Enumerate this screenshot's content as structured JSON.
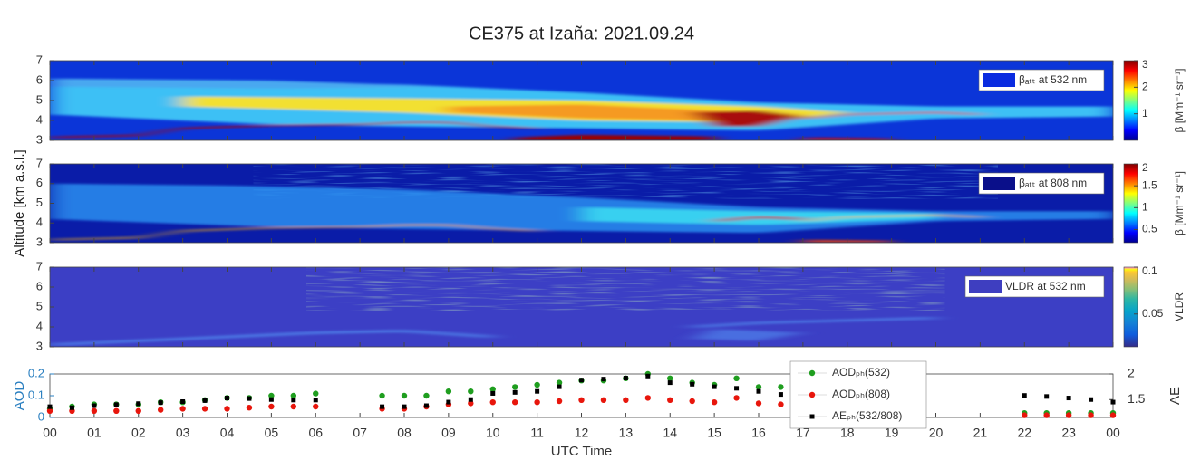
{
  "chart_data": [
    {
      "type": "heatmap",
      "title": "CE375 at Izaña: 2021.09.24",
      "legend": "βₐₜₜ at 532 nm",
      "legend_color": "#0a2be0",
      "ylim": [
        3,
        7
      ],
      "yticks": [
        3,
        4,
        5,
        6,
        7
      ],
      "colorbar": {
        "label": "β [Mm⁻¹ sr⁻¹]",
        "lim": [
          0,
          3
        ],
        "ticks": [
          1,
          2,
          3
        ],
        "colormap": "jet"
      }
    },
    {
      "type": "heatmap",
      "ylabel": "Altitude  [km a.s.l.]",
      "legend": "βₐₜₜ at 808 nm",
      "legend_color": "#0a0f8a",
      "ylim": [
        3,
        7
      ],
      "yticks": [
        3,
        4,
        5,
        6,
        7
      ],
      "colorbar": {
        "label": "β [Mm⁻¹ sr⁻¹]",
        "lim": [
          0.2,
          2
        ],
        "ticks": [
          0.5,
          1,
          1.5,
          2
        ],
        "colormap": "jet"
      }
    },
    {
      "type": "heatmap",
      "legend": "VLDR at 532 nm",
      "legend_color": "#3e3ec0",
      "ylim": [
        3,
        7
      ],
      "yticks": [
        3,
        4,
        5,
        6,
        7
      ],
      "colorbar": {
        "label": "VLDR",
        "lim": [
          0.015,
          0.1
        ],
        "ticks": [
          0.05,
          0.1
        ],
        "colormap": "parula"
      }
    },
    {
      "type": "scatter",
      "xlabel": "UTC Time",
      "ylabel": "AOD",
      "y2label": "AE",
      "xlim": [
        0,
        24
      ],
      "xticks": [
        {
          "value": 0,
          "label": "00"
        },
        {
          "value": 1,
          "label": "01"
        },
        {
          "value": 2,
          "label": "02"
        },
        {
          "value": 3,
          "label": "03"
        },
        {
          "value": 4,
          "label": "04"
        },
        {
          "value": 5,
          "label": "05"
        },
        {
          "value": 6,
          "label": "06"
        },
        {
          "value": 7,
          "label": "07"
        },
        {
          "value": 8,
          "label": "08"
        },
        {
          "value": 9,
          "label": "09"
        },
        10,
        11,
        12,
        13,
        14,
        15,
        16,
        17,
        18,
        19,
        20,
        21,
        22,
        23,
        {
          "value": 24,
          "label": "00"
        }
      ],
      "ylim": [
        0,
        0.2
      ],
      "yticks": [
        0,
        0.1,
        0.2
      ],
      "y2lim": [
        1.15,
        2
      ],
      "y2ticks": [
        1.5,
        2
      ],
      "x": [
        0,
        0.5,
        1,
        1.5,
        2,
        2.5,
        3,
        3.5,
        4,
        4.5,
        5,
        5.5,
        6,
        7.5,
        8,
        8.5,
        9,
        9.5,
        10,
        10.5,
        11,
        11.5,
        12,
        12.5,
        13,
        13.5,
        14,
        14.5,
        15,
        15.5,
        16,
        16.5,
        22,
        22.5,
        23,
        23.5,
        24
      ],
      "series": [
        {
          "name": "AODₚₕ(532)",
          "color": "#1f9e1f",
          "marker": "circle",
          "values": [
            0.04,
            0.05,
            0.06,
            0.06,
            0.06,
            0.07,
            0.07,
            0.08,
            0.09,
            0.09,
            0.1,
            0.1,
            0.11,
            0.1,
            0.1,
            0.1,
            0.12,
            0.12,
            0.13,
            0.14,
            0.15,
            0.16,
            0.17,
            0.17,
            0.18,
            0.2,
            0.18,
            0.16,
            0.15,
            0.18,
            0.14,
            0.14,
            0.02,
            0.02,
            0.02,
            0.02,
            0.02
          ]
        },
        {
          "name": "AODₚₕ(808)",
          "color": "#e8160c",
          "marker": "circle",
          "values": [
            0.03,
            0.03,
            0.03,
            0.03,
            0.03,
            0.035,
            0.04,
            0.04,
            0.04,
            0.045,
            0.05,
            0.05,
            0.05,
            0.04,
            0.04,
            0.05,
            0.06,
            0.065,
            0.07,
            0.07,
            0.07,
            0.075,
            0.08,
            0.08,
            0.08,
            0.09,
            0.08,
            0.075,
            0.07,
            0.09,
            0.065,
            0.06,
            0.01,
            0.01,
            0.01,
            0.01,
            0.01
          ]
        },
        {
          "name": "AEₚₕ(532/808)",
          "color": "#000000",
          "marker": "square",
          "axis": "y2",
          "values": [
            1.36,
            1.34,
            1.38,
            1.4,
            1.42,
            1.44,
            1.46,
            1.48,
            1.53,
            1.52,
            1.5,
            1.49,
            1.49,
            1.36,
            1.36,
            1.38,
            1.45,
            1.5,
            1.62,
            1.64,
            1.66,
            1.75,
            1.88,
            1.9,
            1.92,
            1.96,
            1.83,
            1.8,
            1.75,
            1.72,
            1.66,
            1.6,
            1.58,
            1.56,
            1.53,
            1.5,
            1.45
          ]
        }
      ]
    }
  ]
}
